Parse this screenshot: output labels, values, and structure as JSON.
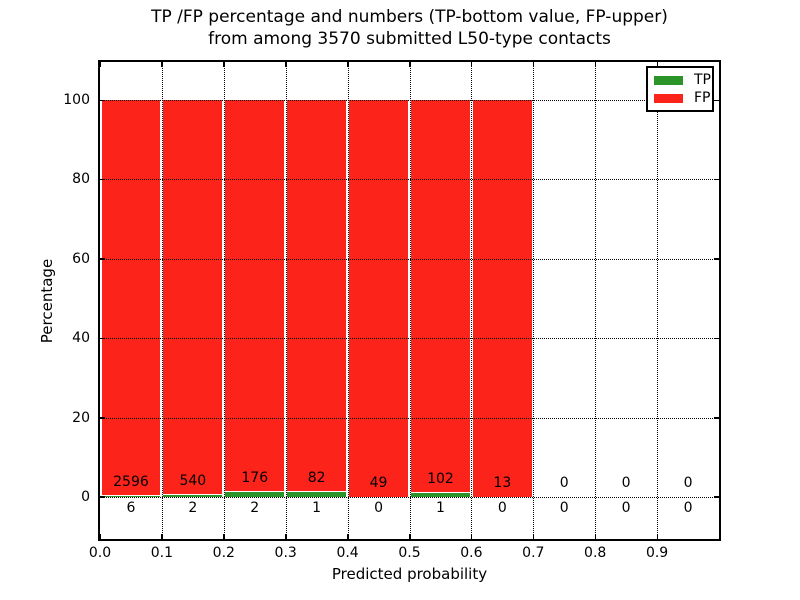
{
  "title": {
    "line1": "TP /FP percentage and numbers (TP-bottom value, FP-upper)",
    "line2": "from among 3570 submitted L50-type contacts"
  },
  "chart_data": {
    "type": "bar",
    "stacked": true,
    "normalized": "each bin drawn as percent of bin total (TP+FP), bars reach 100",
    "title": "TP /FP percentage and numbers (TP-bottom value, FP-upper) from among 3570 submitted L50-type contacts",
    "xlabel": "Predicted probability",
    "ylabel": "Percentage",
    "xlim": [
      0.0,
      1.0
    ],
    "ylim": [
      -10.6,
      109.6
    ],
    "grid": "dotted",
    "bin_width": 0.1,
    "categories": [
      "0.0-0.1",
      "0.1-0.2",
      "0.2-0.3",
      "0.3-0.4",
      "0.4-0.5",
      "0.5-0.6",
      "0.6-0.7",
      "0.7-0.8",
      "0.8-0.9",
      "0.9-1.0"
    ],
    "series": [
      {
        "name": "TP",
        "color": "#2a9428",
        "values": [
          6,
          2,
          2,
          1,
          0,
          1,
          0,
          0,
          0,
          0
        ]
      },
      {
        "name": "FP",
        "color": "#fc231b",
        "values": [
          2596,
          540,
          176,
          82,
          49,
          102,
          13,
          0,
          0,
          0
        ]
      }
    ],
    "total_submitted": 3570,
    "x_ticks": [
      {
        "value": 0.0,
        "label": "0.0"
      },
      {
        "value": 0.1,
        "label": "0.1"
      },
      {
        "value": 0.2,
        "label": "0.2"
      },
      {
        "value": 0.3,
        "label": "0.3"
      },
      {
        "value": 0.4,
        "label": "0.4"
      },
      {
        "value": 0.5,
        "label": "0.5"
      },
      {
        "value": 0.6,
        "label": "0.6"
      },
      {
        "value": 0.7,
        "label": "0.7"
      },
      {
        "value": 0.8,
        "label": "0.8"
      },
      {
        "value": 0.9,
        "label": "0.9"
      }
    ],
    "y_ticks": [
      {
        "value": 0,
        "label": "0"
      },
      {
        "value": 20,
        "label": "20"
      },
      {
        "value": 40,
        "label": "40"
      },
      {
        "value": 60,
        "label": "60"
      },
      {
        "value": 80,
        "label": "80"
      },
      {
        "value": 100,
        "label": "100"
      }
    ],
    "legend": {
      "position": "upper right",
      "entries": [
        {
          "label": "TP",
          "color": "#2a9428"
        },
        {
          "label": "FP",
          "color": "#fc231b"
        }
      ]
    }
  }
}
